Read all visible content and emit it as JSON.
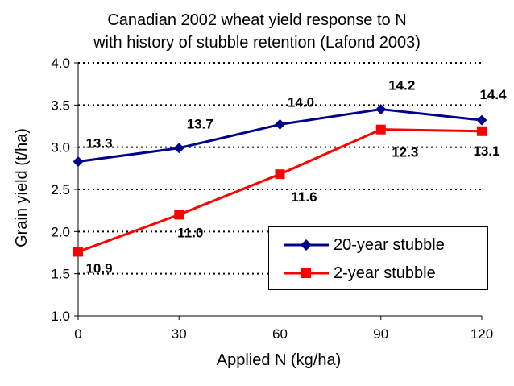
{
  "chart_data": {
    "type": "line",
    "title_line1": "Canadian 2002 wheat yield response to N",
    "title_line2": "with history of stubble retention (Lafond 2003)",
    "xlabel": "Applied N (kg/ha)",
    "ylabel": "Grain yield (t/ha)",
    "x": [
      0,
      30,
      60,
      90,
      120
    ],
    "x_tick_labels": [
      "0",
      "30",
      "60",
      "90",
      "120"
    ],
    "ylim": [
      1.0,
      4.0
    ],
    "y_tick_labels": [
      "1.0",
      "1.5",
      "2.0",
      "2.5",
      "3.0",
      "3.5",
      "4.0"
    ],
    "grid": "horizontal dotted",
    "legend_position": "bottom-right",
    "series": [
      {
        "name": "20-year stubble",
        "color": "#00008B",
        "marker": "diamond",
        "values": [
          2.83,
          2.99,
          3.27,
          3.45,
          3.32
        ],
        "labels": [
          "13.3",
          "13.7",
          "14.0",
          "14.2",
          "14.4"
        ]
      },
      {
        "name": "2-year stubble",
        "color": "#FF0000",
        "marker": "square",
        "values": [
          1.76,
          2.2,
          2.68,
          3.21,
          3.19
        ],
        "labels": [
          "10.9",
          "11.0",
          "11.6",
          "12.3",
          "13.1"
        ]
      }
    ]
  }
}
